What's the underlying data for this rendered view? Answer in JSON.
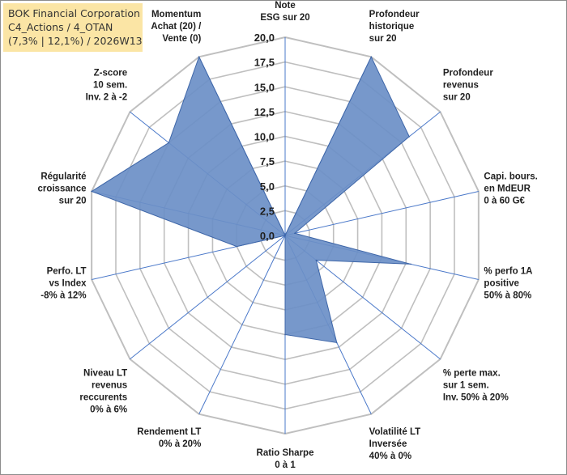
{
  "title_box": {
    "line1": "BOK Financial Corporation",
    "line2": "C4_Actions / 4_OTAN",
    "line3": "(7,3% | 12,1%) / 2026W13"
  },
  "chart_data": {
    "type": "radar",
    "ylim": [
      0,
      20
    ],
    "ticks": [
      0,
      2.5,
      5,
      7.5,
      10,
      12.5,
      15,
      17.5,
      20
    ],
    "tick_labels": [
      "0,0",
      "2,5",
      "5,0",
      "7,5",
      "10,0",
      "12,5",
      "15,0",
      "17,5",
      "20,0"
    ],
    "axes": [
      {
        "label": [
          "Note",
          "ESG sur 20"
        ],
        "value": 0.0
      },
      {
        "label": [
          "Profondeur",
          "historique",
          "sur 20"
        ],
        "value": 20.0
      },
      {
        "label": [
          "Profondeur",
          "revenus",
          "sur 20"
        ],
        "value": 16.0
      },
      {
        "label": [
          "Capi. bours.",
          "en MdEUR",
          "0 à 60 G€"
        ],
        "value": 1.0
      },
      {
        "label": [
          "% perfo 1A",
          "positive",
          "50% à 80%"
        ],
        "value": 13.0
      },
      {
        "label": [
          "% perte max.",
          "sur 1 sem.",
          "Inv. 50% à 20%"
        ],
        "value": 4.0
      },
      {
        "label": [
          "Volatilité LT",
          "Inversée",
          "40% à 0%"
        ],
        "value": 12.0
      },
      {
        "label": [
          "Ratio Sharpe",
          "0 à 1"
        ],
        "value": 10.0
      },
      {
        "label": [
          "Rendement LT",
          "0% à 20%"
        ],
        "value": 0.0
      },
      {
        "label": [
          "Niveau LT",
          "revenus",
          "reccurents",
          "0% à 6%"
        ],
        "value": 0.0
      },
      {
        "label": [
          "Perfo. LT",
          "vs Index",
          "-8% à 12%"
        ],
        "value": 5.0
      },
      {
        "label": [
          "Régularité",
          "croissance",
          "sur 20"
        ],
        "value": 20.0
      },
      {
        "label": [
          "Z-score",
          "10 sem.",
          "Inv. 2 à -2"
        ],
        "value": 15.0
      },
      {
        "label": [
          "Momentum",
          "Achat (20) /",
          "Vente (0)"
        ],
        "value": 20.0
      }
    ],
    "colors": {
      "fill": "#6b8fc7",
      "stroke": "#3e66a8",
      "grid": "#bfbfbf",
      "spoke": "#4a78c9"
    }
  }
}
